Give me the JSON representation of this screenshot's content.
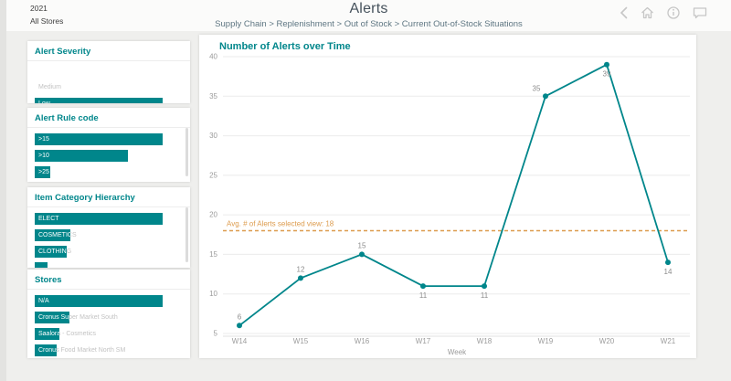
{
  "header": {
    "year_filter": "2021",
    "store_filter": "All Stores",
    "title": "Alerts",
    "breadcrumb": "Supply Chain > Replenishment > Out of Stock > Current Out-of-Stock Situations",
    "icon_color": "#c6c6c6"
  },
  "sidebar": {
    "panels": [
      {
        "title": "Alert Severity",
        "items": [
          {
            "label": "Medium",
            "width_pct": 0
          },
          {
            "label": "Low",
            "width_pct": 100
          }
        ]
      },
      {
        "title": "Alert Rule code",
        "items": [
          {
            "label": ">15",
            "width_pct": 100
          },
          {
            "label": ">10",
            "width_pct": 73
          },
          {
            "label": ">25",
            "width_pct": 12
          }
        ]
      },
      {
        "title": "Item Category Hierarchy",
        "items": [
          {
            "label": "ELECT",
            "width_pct": 100
          },
          {
            "label": "COSMETICS",
            "width_pct": 28
          },
          {
            "label": "CLOTHING",
            "width_pct": 25
          },
          {
            "label": "",
            "width_pct": 10
          }
        ]
      },
      {
        "title": "Stores",
        "items": [
          {
            "label": "N/A",
            "width_pct": 100
          },
          {
            "label": "Cronus Super Market South",
            "width_pct": 27
          },
          {
            "label": "Saalora - Cosmetics",
            "width_pct": 19
          },
          {
            "label": "Cronus Food Market North SM",
            "width_pct": 17
          }
        ]
      }
    ],
    "accent_color": "#00868b"
  },
  "chart_data": {
    "type": "line",
    "title": "Number of Alerts over Time",
    "x": [
      "W14",
      "W15",
      "W16",
      "W17",
      "W18",
      "W19",
      "W20",
      "W21"
    ],
    "values": [
      6,
      12,
      15,
      11,
      11,
      35,
      39,
      14
    ],
    "label_positions": [
      "above",
      "above",
      "above",
      "below",
      "below",
      "above-left",
      "below",
      "below"
    ],
    "yticks": [
      5,
      10,
      15,
      20,
      25,
      30,
      35,
      40
    ],
    "ylim": [
      5,
      40
    ],
    "xlabel": "Week",
    "grid": true,
    "legend": "none",
    "line_color": "#00868b",
    "avg_line": {
      "value": 18,
      "label": "Avg. # of Alerts selected view: 18",
      "color": "#dd9c4e"
    }
  }
}
